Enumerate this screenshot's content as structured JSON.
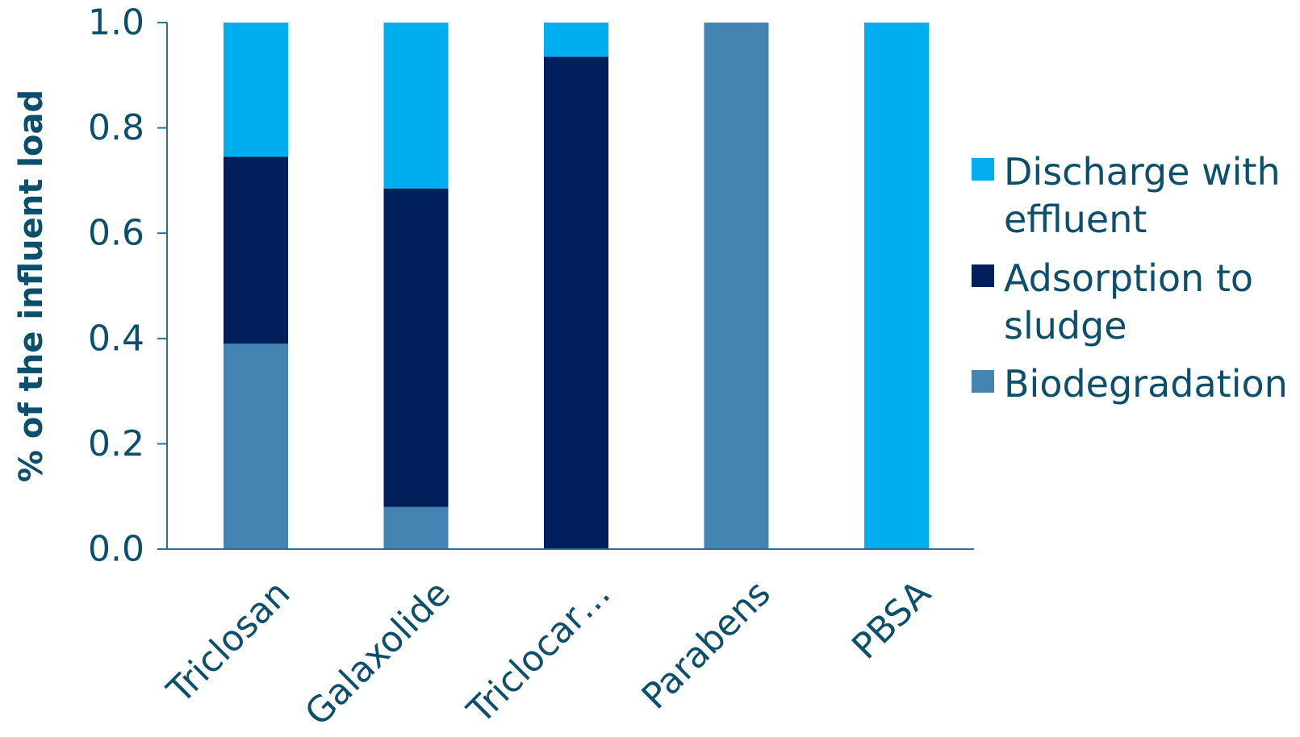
{
  "chart_data": {
    "type": "bar",
    "stacked": true,
    "categories": [
      "Triclosan",
      "Galaxolide",
      "Triclocar…",
      "Parabens",
      "PBSA"
    ],
    "series": [
      {
        "name": "Biodegradation",
        "color": "#4484B2",
        "values": [
          0.39,
          0.08,
          0.0,
          1.0,
          0.0
        ]
      },
      {
        "name": "Adsorption to sludge",
        "color": "#001F5B",
        "values": [
          0.355,
          0.605,
          0.935,
          0.0,
          0.0
        ]
      },
      {
        "name": "Discharge with effluent",
        "color": "#00AEEF",
        "values": [
          0.255,
          0.315,
          0.065,
          0.0,
          1.0
        ]
      }
    ],
    "title": "",
    "xlabel": "",
    "ylabel": "% of the influent load",
    "ylim": [
      0,
      1.0
    ],
    "yticks": [
      "0.0",
      "0.2",
      "0.4",
      "0.6",
      "0.8",
      "1.0"
    ],
    "grid": false,
    "legend_position": "right",
    "legend_order": [
      "Discharge with effluent",
      "Adsorption to sludge",
      "Biodegradation"
    ],
    "legend_labels": {
      "Discharge with effluent": [
        "Discharge with",
        "effluent"
      ],
      "Adsorption to sludge": [
        "Adsorption to",
        "sludge"
      ],
      "Biodegradation": [
        "Biodegradation"
      ]
    },
    "text_color": "#0B4F6C",
    "axis_color": "#2E6F8E"
  }
}
